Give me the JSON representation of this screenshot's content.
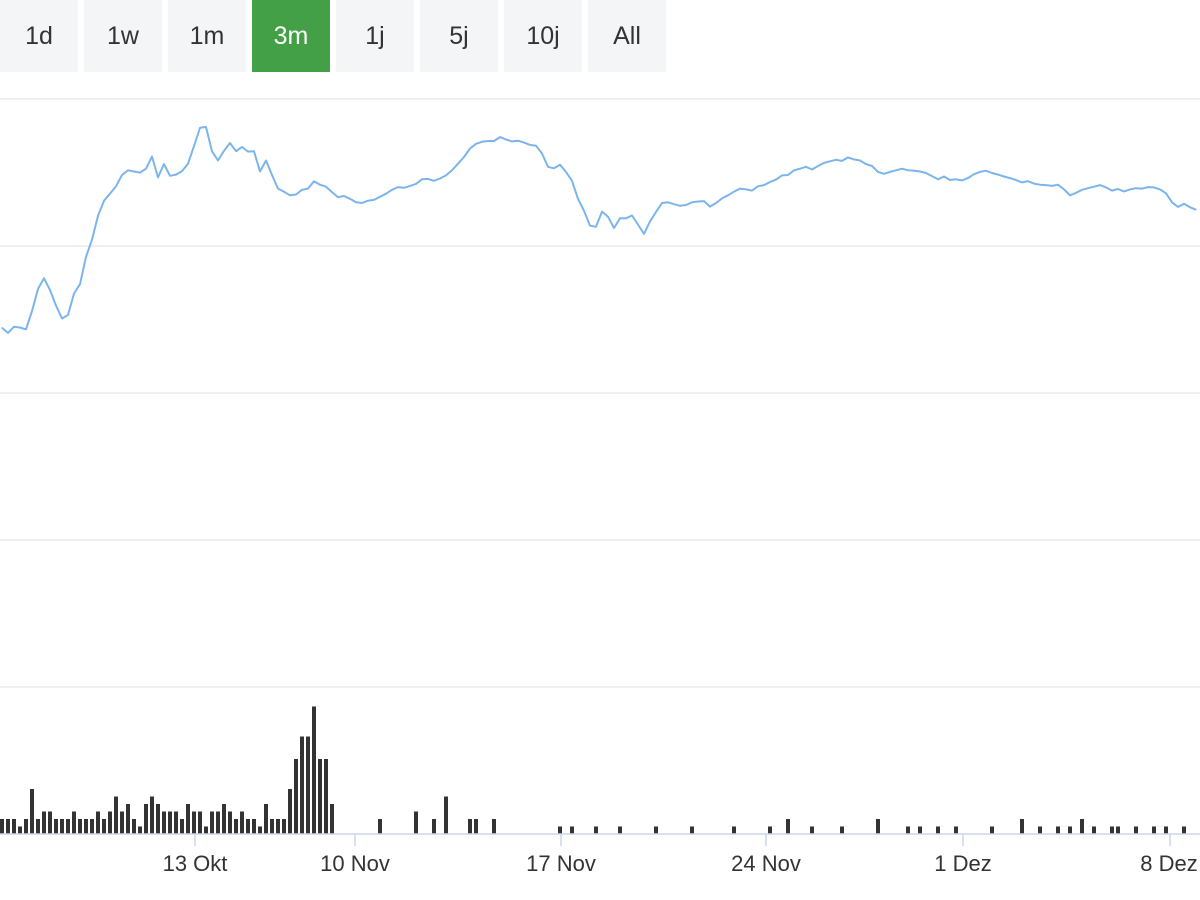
{
  "range_selector": {
    "buttons": [
      {
        "label": "1d"
      },
      {
        "label": "1w"
      },
      {
        "label": "1m"
      },
      {
        "label": "3m"
      },
      {
        "label": "1j"
      },
      {
        "label": "5j"
      },
      {
        "label": "10j"
      },
      {
        "label": "All"
      }
    ],
    "active": "3m"
  },
  "colors": {
    "accent": "#43a047",
    "line": "#7cb5ec",
    "volume": "#333333",
    "grid": "#e6e6e6"
  },
  "chart_data": {
    "type": "line",
    "title": "",
    "xlabel": "",
    "ylabel": "",
    "grid": true,
    "x_ticks": [
      "13 Okt",
      "10 Nov",
      "17 Nov",
      "24 Nov",
      "1 Dez",
      "8 Dez"
    ],
    "ylim": [
      0,
      100
    ],
    "series": [
      {
        "values": [
          48.5,
          47.2,
          48.8,
          48.6,
          48.1,
          52.8,
          58.5,
          61.2,
          58.2,
          54.2,
          50.9,
          51.8,
          57.3,
          59.7,
          66.7,
          71.1,
          77.2,
          81.1,
          82.9,
          84.8,
          87.7,
          88.9,
          88.6,
          88.3,
          89.3,
          92.4,
          87.1,
          90.5,
          87.5,
          87.8,
          88.7,
          90.6,
          95.1,
          99.8,
          100.0,
          93.8,
          91.4,
          93.9,
          95.9,
          93.8,
          94.9,
          93.7,
          93.8,
          88.6,
          91.4,
          87.7,
          84.2,
          83.4,
          82.5,
          82.7,
          83.9,
          84.2,
          86.1,
          85.2,
          84.7,
          83.3,
          82.0,
          82.3,
          81.6,
          80.7,
          80.5,
          81.1,
          81.3,
          82.1,
          82.9,
          83.9,
          84.6,
          84.4,
          84.9,
          85.4,
          86.6,
          86.7,
          86.2,
          86.8,
          87.6,
          88.9,
          90.6,
          92.3,
          94.5,
          95.7,
          96.2,
          96.4,
          96.4,
          97.4,
          96.8,
          96.3,
          96.5,
          96.0,
          95.4,
          95.2,
          93.2,
          89.8,
          89.4,
          90.3,
          88.5,
          86.2,
          81.6,
          78.5,
          74.7,
          74.4,
          78.3,
          77.0,
          74.1,
          76.6,
          76.6,
          77.3,
          75.0,
          72.6,
          75.8,
          78.2,
          80.5,
          80.7,
          80.2,
          79.8,
          80.0,
          80.7,
          80.9,
          81.0,
          79.6,
          80.5,
          81.7,
          82.5,
          83.4,
          84.2,
          84.0,
          83.7,
          84.8,
          85.1,
          85.9,
          86.5,
          87.6,
          87.7,
          88.9,
          89.3,
          89.8,
          89.1,
          90.0,
          90.8,
          91.2,
          91.6,
          91.3,
          92.2,
          91.7,
          91.4,
          90.5,
          90.0,
          88.5,
          88.0,
          88.5,
          88.9,
          89.3,
          88.9,
          88.8,
          88.6,
          88.2,
          87.4,
          86.6,
          87.3,
          86.4,
          86.6,
          86.3,
          86.9,
          87.9,
          88.5,
          88.8,
          88.2,
          87.8,
          87.3,
          86.9,
          86.4,
          85.8,
          86.1,
          85.5,
          85.2,
          85.1,
          84.9,
          85.2,
          84.0,
          82.5,
          83.1,
          83.9,
          84.3,
          84.7,
          85.1,
          84.5,
          83.7,
          84.1,
          83.5,
          84.0,
          84.3,
          84.2,
          84.6,
          84.5,
          84.0,
          83.0,
          80.7,
          79.5,
          80.3,
          79.4,
          78.8
        ]
      }
    ],
    "volume": [
      2,
      2,
      2,
      1,
      2,
      6,
      2,
      3,
      3,
      2,
      2,
      2,
      3,
      2,
      2,
      2,
      3,
      2,
      3,
      5,
      3,
      4,
      2,
      1,
      4,
      5,
      4,
      3,
      3,
      3,
      2,
      4,
      3,
      3,
      1,
      3,
      3,
      4,
      3,
      2,
      3,
      2,
      2,
      1,
      4,
      2,
      2,
      2,
      6,
      10,
      13,
      13,
      17,
      10,
      10,
      4,
      0,
      0,
      0,
      0,
      0,
      0,
      0,
      2,
      0,
      0,
      0,
      0,
      0,
      3,
      0,
      0,
      2,
      0,
      5,
      0,
      0,
      0,
      2,
      2,
      0,
      0,
      2,
      0,
      0,
      0,
      0,
      0,
      0,
      0,
      0,
      0,
      0,
      1,
      0,
      1,
      0,
      0,
      0,
      1,
      0,
      0,
      0,
      1,
      0,
      0,
      0,
      0,
      0,
      1,
      0,
      0,
      0,
      0,
      0,
      1,
      0,
      0,
      0,
      0,
      0,
      0,
      1,
      0,
      0,
      0,
      0,
      0,
      1,
      0,
      0,
      2,
      0,
      0,
      0,
      1,
      0,
      0,
      0,
      0,
      1,
      0,
      0,
      0,
      0,
      0,
      2,
      0,
      0,
      0,
      0,
      1,
      0,
      1,
      0,
      0,
      1,
      0,
      0,
      1,
      0,
      0,
      0,
      0,
      0,
      1,
      0,
      0,
      0,
      0,
      2,
      0,
      0,
      1,
      0,
      0,
      1,
      0,
      1,
      0,
      2,
      0,
      1,
      0,
      0,
      1,
      1,
      0,
      0,
      1,
      0,
      0,
      1,
      0,
      1,
      0,
      0,
      1,
      0,
      0
    ]
  }
}
